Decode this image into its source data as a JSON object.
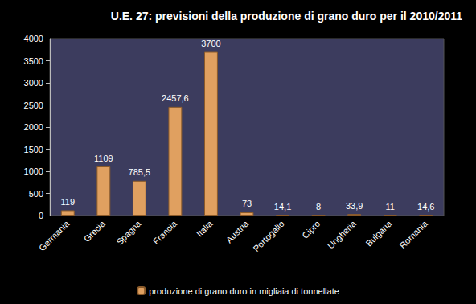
{
  "chart_data": {
    "type": "bar",
    "title": "U.E. 27: previsioni della produzione di grano duro per il 2010/2011",
    "categories": [
      "Germania",
      "Grecia",
      "Spagna",
      "Francia",
      "Italia",
      "Austria",
      "Portogallo",
      "Cipro",
      "Ungheria",
      "Bulgaria",
      "Romania"
    ],
    "series": [
      {
        "name": "produzione di grano duro in migliaia di tonnellate",
        "color": "#e0a060",
        "values": [
          119,
          1109,
          785.5,
          2457.6,
          3700,
          73,
          14.1,
          8,
          33.9,
          11,
          14.6
        ],
        "value_labels": [
          "119",
          "1109",
          "785,5",
          "2457,6",
          "3700",
          "73",
          "14,1",
          "8",
          "33,9",
          "11",
          "14,6"
        ]
      }
    ],
    "ylim": [
      0,
      4000
    ],
    "yticks": [
      0,
      500,
      1000,
      1500,
      2000,
      2500,
      3000,
      3500,
      4000
    ],
    "grid": false,
    "legend": "bottom",
    "data_labels": true
  }
}
